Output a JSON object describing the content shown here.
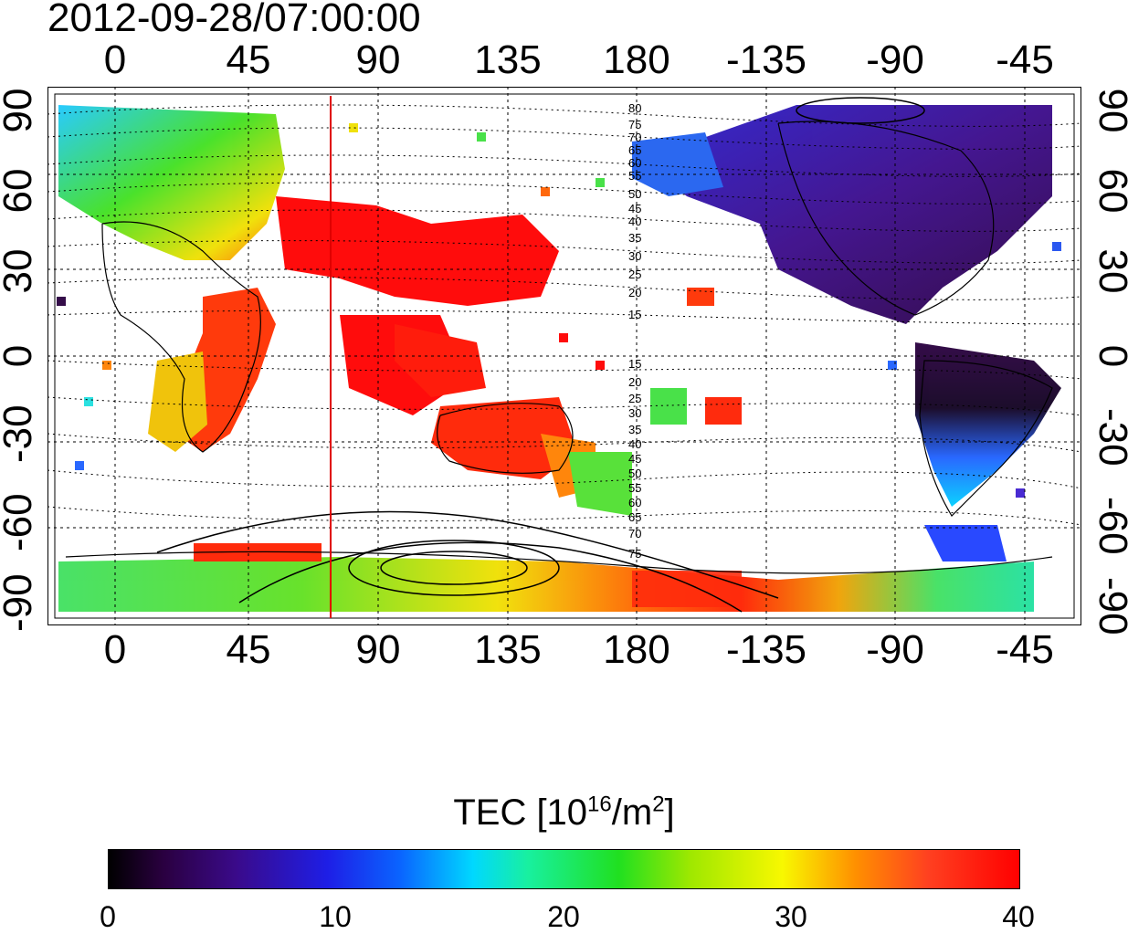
{
  "title": "2012-09-28/07:00:00",
  "lon_labels": [
    "0",
    "45",
    "90",
    "135",
    "180",
    "-135",
    "-90",
    "-45"
  ],
  "lat_labels": [
    "90",
    "60",
    "30",
    "0",
    "-30",
    "-60",
    "-90"
  ],
  "contour_labels": [
    "80",
    "75",
    "70",
    "65",
    "60",
    "55",
    "50",
    "45",
    "40",
    "35",
    "30",
    "25",
    "20",
    "15"
  ],
  "contour_labels_south": [
    "15",
    "20",
    "25",
    "30",
    "35",
    "40",
    "45",
    "50",
    "55",
    "60",
    "65",
    "70",
    "75"
  ],
  "marker_longitude": 76,
  "colorbar": {
    "title_main": "TEC  [10",
    "title_exp": "16",
    "title_unit": "/m",
    "title_unit_exp": "2",
    "title_close": "]",
    "ticks": [
      "0",
      "10",
      "20",
      "30",
      "40"
    ],
    "colors": [
      "#000000",
      "#3a0a8a",
      "#1e1ee6",
      "#00d8ff",
      "#20e020",
      "#f8f800",
      "#ff9000",
      "#ff0000"
    ]
  }
}
